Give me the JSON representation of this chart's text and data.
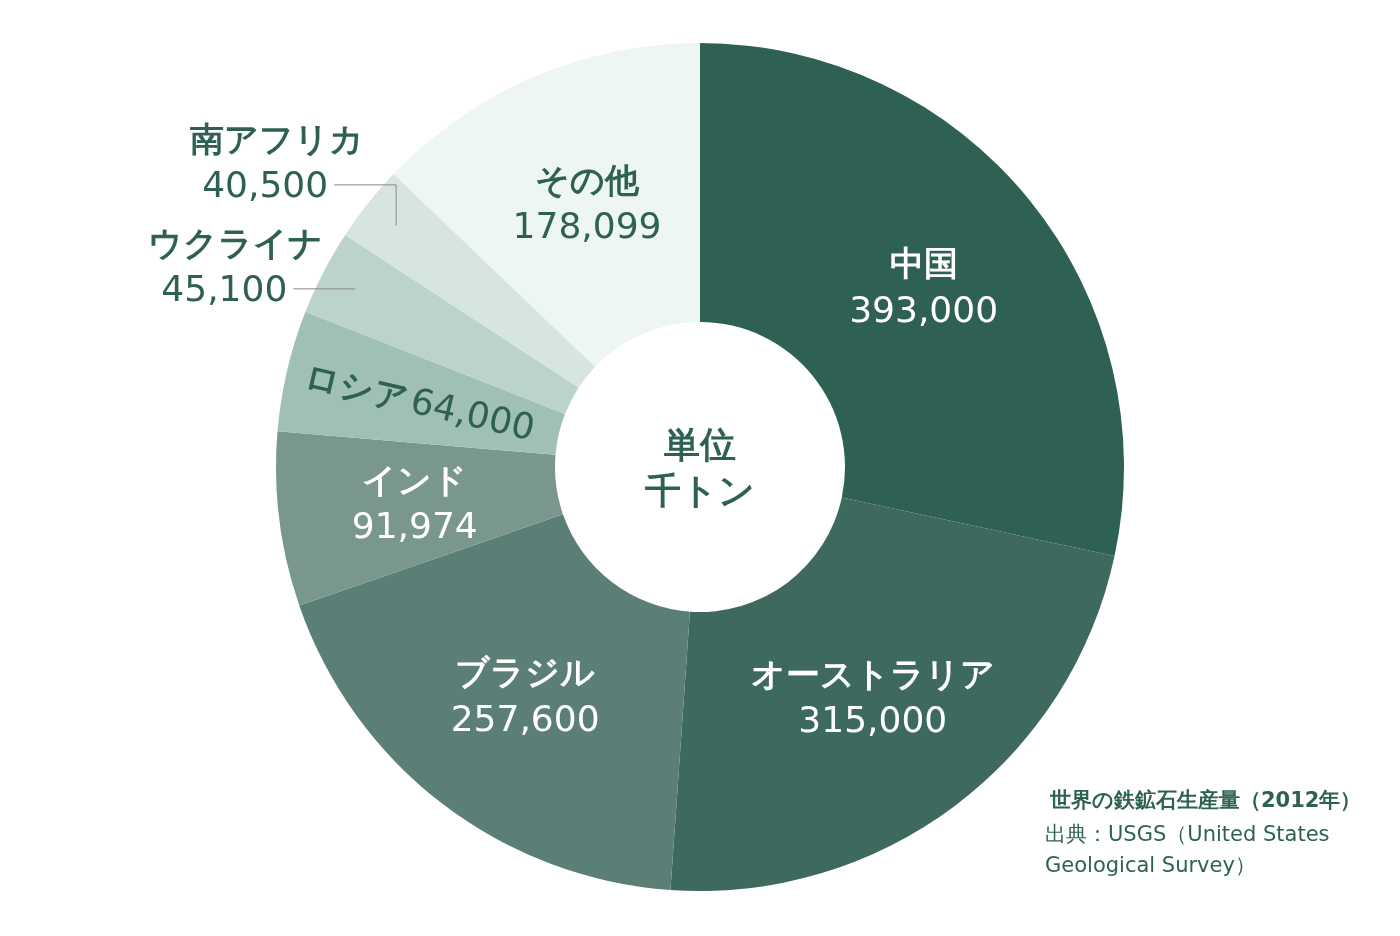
{
  "chart_data": {
    "type": "donut",
    "title": "世界の鉄鉱石生産量（2012年）",
    "categories": [
      "中国",
      "オーストラリア",
      "ブラジル",
      "インド",
      "ロシア",
      "ウクライナ",
      "南アフリカ",
      "その他"
    ],
    "values": [
      393000,
      315000,
      257600,
      91974,
      64000,
      45100,
      40500,
      178099
    ],
    "value_labels": [
      "393,000",
      "315,000",
      "257,600",
      "91,974",
      "64,000",
      "45,100",
      "40,500",
      "178,099"
    ],
    "colors": [
      "#2e6153",
      "#3e695e",
      "#5b7f76",
      "#7a978e",
      "#a0c0b5",
      "#bcd3cc",
      "#d6e5e1",
      "#eef6f4"
    ],
    "legend": false,
    "annotations": [
      "単位",
      "千トン",
      "出典：USGS（United States Geological Survey）"
    ]
  }
}
